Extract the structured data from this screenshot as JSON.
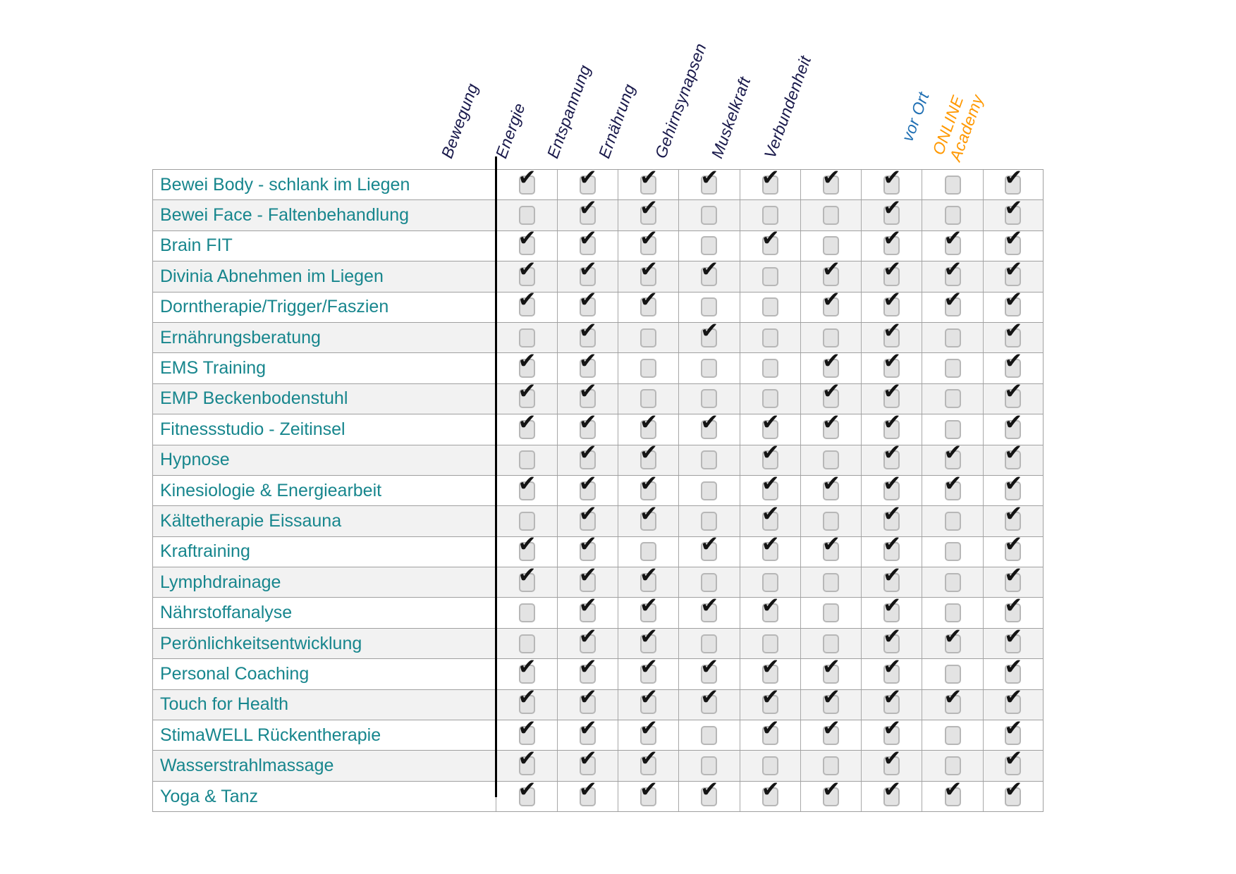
{
  "colors": {
    "row_label": "#17868D",
    "header_default": "#19194B",
    "header_online_academy": "#FF9800",
    "header_vor_ort": "#1F6FB3",
    "grid_line": "#A0A0A0",
    "divider_line": "#000000",
    "row_alt_background": "#F2F2F2",
    "checkbox_fill": "#E3E3E3",
    "checkbox_border": "#B7B7B7",
    "checkmark": "#141414"
  },
  "table": {
    "columns": [
      {
        "label": "Bewegung",
        "color": "#19194B"
      },
      {
        "label": "Energie",
        "color": "#19194B"
      },
      {
        "label": "Entspannung",
        "color": "#19194B"
      },
      {
        "label": "Ernährung",
        "color": "#19194B"
      },
      {
        "label": "Gehirnsynapsen",
        "color": "#19194B"
      },
      {
        "label": "Muskelkraft",
        "color": "#19194B"
      },
      {
        "label": "Verbundenheit",
        "color": "#19194B"
      },
      {
        "label": "ONLINE\nAcademy",
        "color": "#FF9800"
      },
      {
        "label": "vor Ort",
        "color": "#1F6FB3"
      }
    ],
    "rows": [
      {
        "label": "Bewei Body - schlank im Liegen",
        "checks": [
          1,
          1,
          1,
          1,
          1,
          1,
          1,
          0,
          1
        ]
      },
      {
        "label": "Bewei Face - Faltenbehandlung",
        "checks": [
          0,
          1,
          1,
          0,
          0,
          0,
          1,
          0,
          1
        ]
      },
      {
        "label": "Brain FIT",
        "checks": [
          1,
          1,
          1,
          0,
          1,
          0,
          1,
          1,
          1
        ]
      },
      {
        "label": "Divinia Abnehmen im Liegen",
        "checks": [
          1,
          1,
          1,
          1,
          0,
          1,
          1,
          1,
          1
        ]
      },
      {
        "label": "Dorntherapie/Trigger/Faszien",
        "checks": [
          1,
          1,
          1,
          0,
          0,
          1,
          1,
          1,
          1
        ]
      },
      {
        "label": "Ernährungsberatung",
        "checks": [
          0,
          1,
          0,
          1,
          0,
          0,
          1,
          0,
          1
        ]
      },
      {
        "label": "EMS Training",
        "checks": [
          1,
          1,
          0,
          0,
          0,
          1,
          1,
          0,
          1
        ]
      },
      {
        "label": "EMP Beckenbodenstuhl",
        "checks": [
          1,
          1,
          0,
          0,
          0,
          1,
          1,
          0,
          1
        ]
      },
      {
        "label": "Fitnessstudio - Zeitinsel",
        "checks": [
          1,
          1,
          1,
          1,
          1,
          1,
          1,
          0,
          1
        ]
      },
      {
        "label": "Hypnose",
        "checks": [
          0,
          1,
          1,
          0,
          1,
          0,
          1,
          1,
          1
        ]
      },
      {
        "label": "Kinesiologie & Energiearbeit",
        "checks": [
          1,
          1,
          1,
          0,
          1,
          1,
          1,
          1,
          1
        ]
      },
      {
        "label": "Kältetherapie Eissauna",
        "checks": [
          0,
          1,
          1,
          0,
          1,
          0,
          1,
          0,
          1
        ]
      },
      {
        "label": "Kraftraining",
        "checks": [
          1,
          1,
          0,
          1,
          1,
          1,
          1,
          0,
          1
        ]
      },
      {
        "label": "Lymphdrainage",
        "checks": [
          1,
          1,
          1,
          0,
          0,
          0,
          1,
          0,
          1
        ]
      },
      {
        "label": "Nährstoffanalyse",
        "checks": [
          0,
          1,
          1,
          1,
          1,
          0,
          1,
          0,
          1
        ]
      },
      {
        "label": "Perönlichkeitsentwicklung",
        "checks": [
          0,
          1,
          1,
          0,
          0,
          0,
          1,
          1,
          1
        ]
      },
      {
        "label": "Personal Coaching",
        "checks": [
          1,
          1,
          1,
          1,
          1,
          1,
          1,
          0,
          1
        ]
      },
      {
        "label": "Touch for Health",
        "checks": [
          1,
          1,
          1,
          1,
          1,
          1,
          1,
          1,
          1
        ]
      },
      {
        "label": "StimaWELL Rückentherapie",
        "checks": [
          1,
          1,
          1,
          0,
          1,
          1,
          1,
          0,
          1
        ]
      },
      {
        "label": "Wasserstrahlmassage",
        "checks": [
          1,
          1,
          1,
          0,
          0,
          0,
          1,
          0,
          1
        ]
      },
      {
        "label": "Yoga & Tanz",
        "checks": [
          1,
          1,
          1,
          1,
          1,
          1,
          1,
          1,
          1
        ]
      }
    ],
    "checked_symbol": "checkmark",
    "unchecked_symbol": "empty-checkbox"
  }
}
